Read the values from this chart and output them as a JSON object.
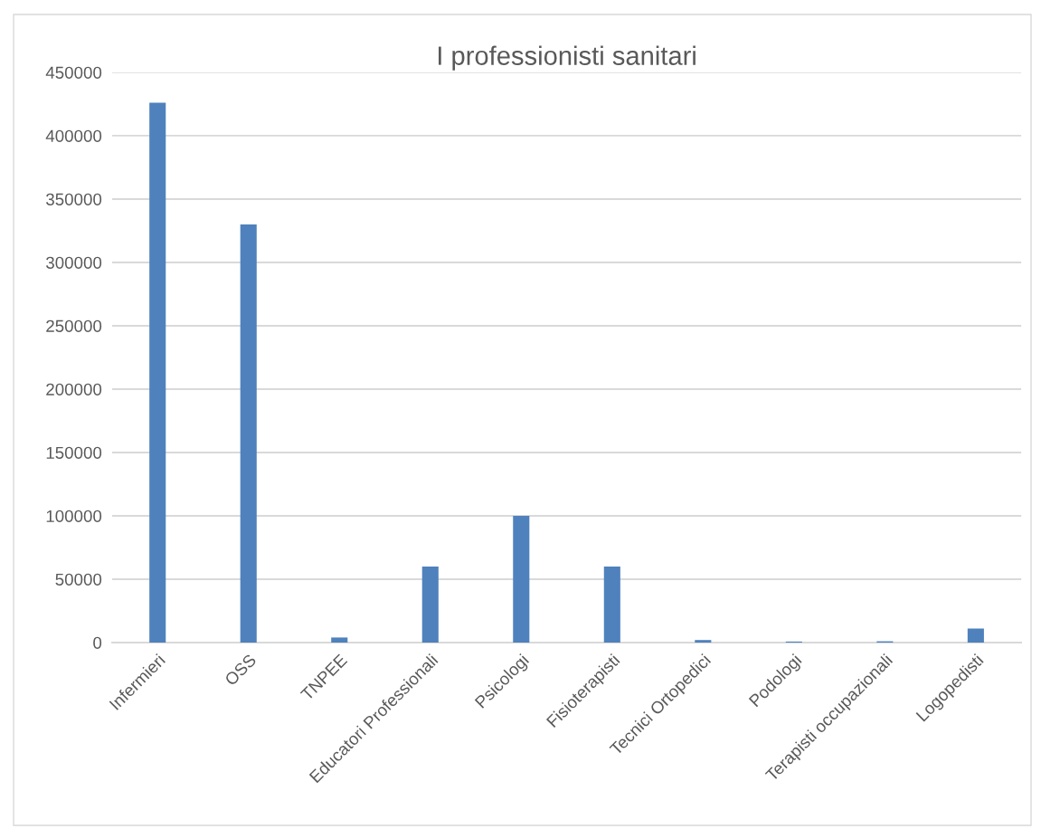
{
  "chart_data": {
    "type": "bar",
    "title": "I professionisti sanitari",
    "categories": [
      "Infermieri",
      "OSS",
      "TNPEE",
      "Educatori Professionali",
      "Psicologi",
      "Fisioterapisti",
      "Tecnici Ortopedici",
      "Podologi",
      "Terapisti occupazionali",
      "Logopedisti"
    ],
    "values": [
      426000,
      330000,
      4000,
      60000,
      100000,
      60000,
      2000,
      800,
      1000,
      11000
    ],
    "color": "#4f81bd",
    "ylim": [
      0,
      450000
    ],
    "yticks": [
      0,
      50000,
      100000,
      150000,
      200000,
      250000,
      300000,
      350000,
      400000,
      450000
    ],
    "grid": "y",
    "legend": false
  }
}
